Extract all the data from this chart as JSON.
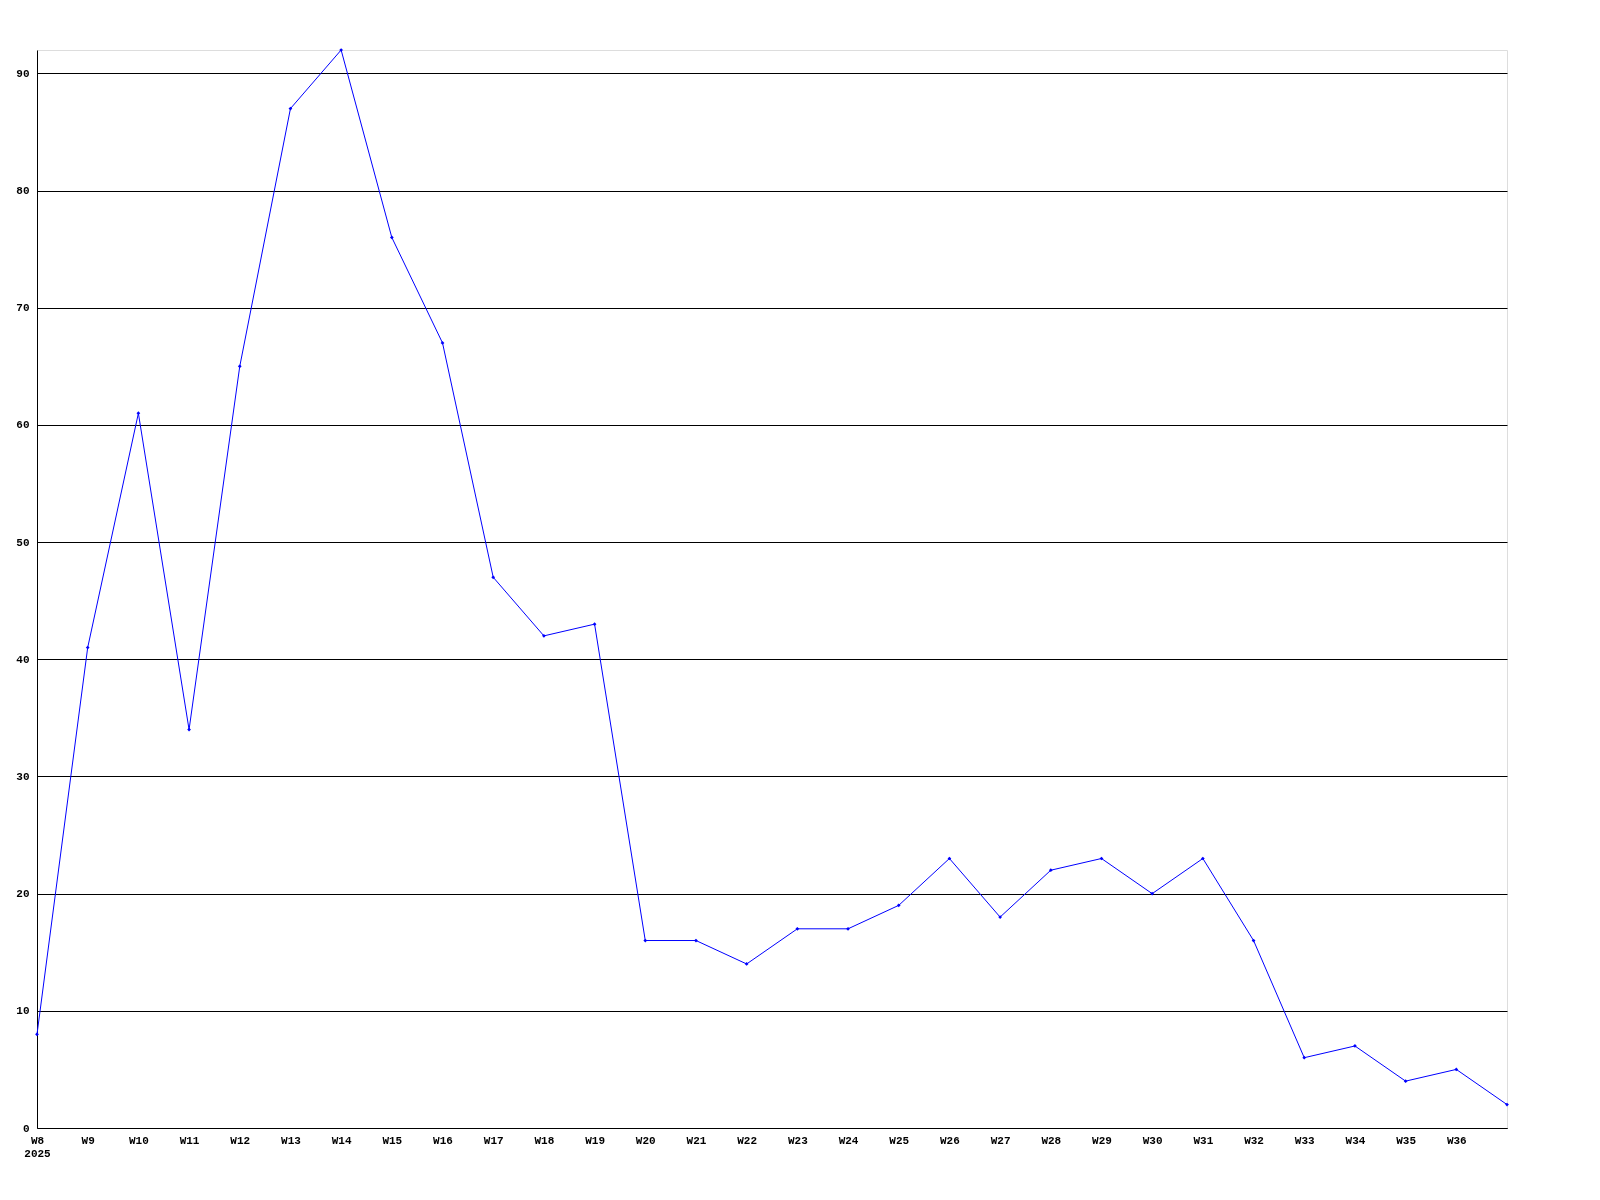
{
  "chart_data": {
    "type": "line",
    "categories": [
      "W8\n2025",
      "W9",
      "W10",
      "W11",
      "W12",
      "W13",
      "W14",
      "W15",
      "W16",
      "W17",
      "W18",
      "W19",
      "W20",
      "W21",
      "W22",
      "W23",
      "W24",
      "W25",
      "W26",
      "W27",
      "W28",
      "W29",
      "W30",
      "W31",
      "W32",
      "W33",
      "W34",
      "W35",
      "W36",
      null
    ],
    "series": [
      {
        "color": "#0000ff",
        "values": [
          8,
          41,
          61,
          34,
          65,
          87,
          92,
          76,
          67,
          47,
          42,
          43,
          16,
          16,
          14,
          17,
          17,
          19,
          23,
          18,
          22,
          23,
          20,
          23,
          16,
          6,
          7,
          4,
          5,
          2
        ]
      }
    ],
    "ylim": [
      0,
      92
    ],
    "yticks": [
      0,
      10,
      20,
      30,
      40,
      50,
      60,
      70,
      80,
      90
    ],
    "grid": "y",
    "marker": "diamond",
    "line_style": "solid"
  }
}
